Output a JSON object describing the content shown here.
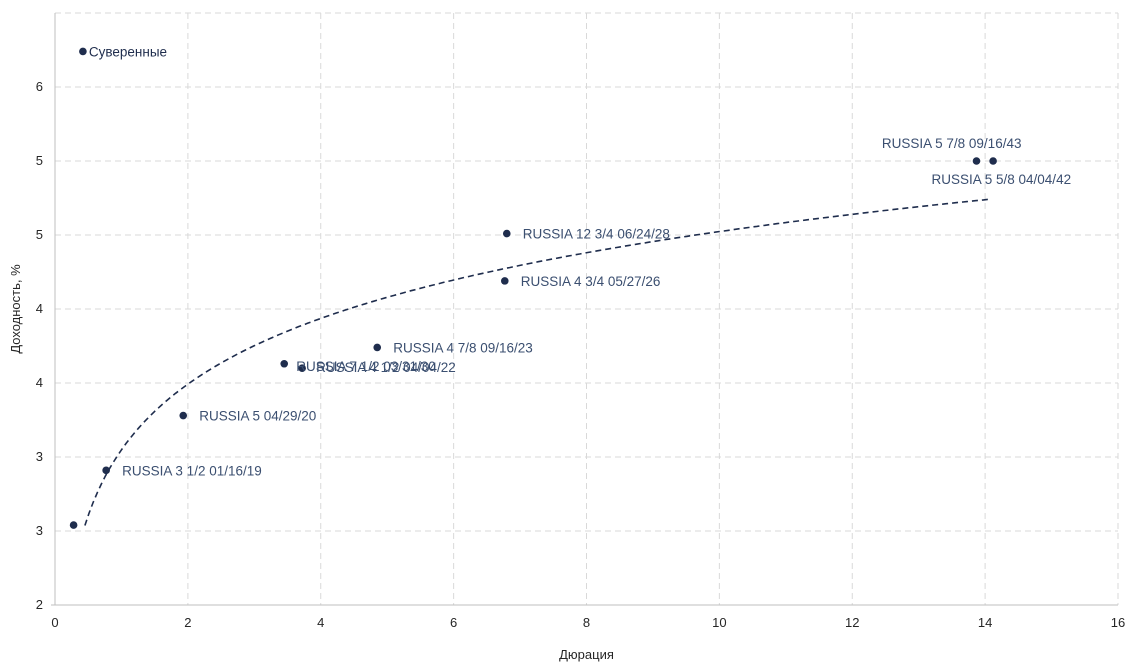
{
  "chart_data": {
    "type": "scatter",
    "title": "",
    "xlabel": "Дюрация",
    "ylabel": "Доходность, %",
    "xlim": [
      0,
      16
    ],
    "ylim": [
      2,
      6
    ],
    "x_ticks": [
      0,
      2,
      4,
      6,
      8,
      10,
      12,
      14,
      16
    ],
    "y_ticks": [
      {
        "value": 2,
        "label": "2"
      },
      {
        "value": 2.5,
        "label": "3"
      },
      {
        "value": 3,
        "label": "3"
      },
      {
        "value": 3.5,
        "label": "4"
      },
      {
        "value": 4,
        "label": "4"
      },
      {
        "value": 4.5,
        "label": "5"
      },
      {
        "value": 5,
        "label": "5"
      },
      {
        "value": 5.5,
        "label": "6"
      }
    ],
    "grid": true,
    "colors": {
      "points": "#1f2d4d",
      "labels": "#3b4f70",
      "trend": "#1f2d4d",
      "grid": "#d9d9d9",
      "axis": "#bfbfbf"
    },
    "points": [
      {
        "x": 0.28,
        "y": 2.54,
        "label": ""
      },
      {
        "x": 0.77,
        "y": 2.91,
        "label": "RUSSIA 3 1/2 01/16/19"
      },
      {
        "x": 1.93,
        "y": 3.28,
        "label": "RUSSIA 5 04/29/20"
      },
      {
        "x": 3.45,
        "y": 3.63,
        "label": "RUSSIA 7 1/2 03/31/30"
      },
      {
        "x": 3.72,
        "y": 3.6,
        "label": "RUSSIA 4 1/2 04/04/22"
      },
      {
        "x": 4.85,
        "y": 3.74,
        "label": "RUSSIA 4 7/8 09/16/23"
      },
      {
        "x": 6.77,
        "y": 4.19,
        "label": "RUSSIA 4 3/4 05/27/26"
      },
      {
        "x": 6.8,
        "y": 4.51,
        "label": "RUSSIA 12 3/4 06/24/28"
      },
      {
        "x": 13.87,
        "y": 5.0,
        "label": "RUSSIA 5 7/8 09/16/43"
      },
      {
        "x": 14.12,
        "y": 5.0,
        "label": "RUSSIA 5 5/8 04/04/42"
      }
    ],
    "series": [
      {
        "name": "Суверенные",
        "x": [
          0.42
        ],
        "y": [
          5.74
        ]
      }
    ],
    "trend": {
      "type": "logarithmic",
      "style": "dashed",
      "x_start": 0.45,
      "x_end": 14.1
    }
  }
}
